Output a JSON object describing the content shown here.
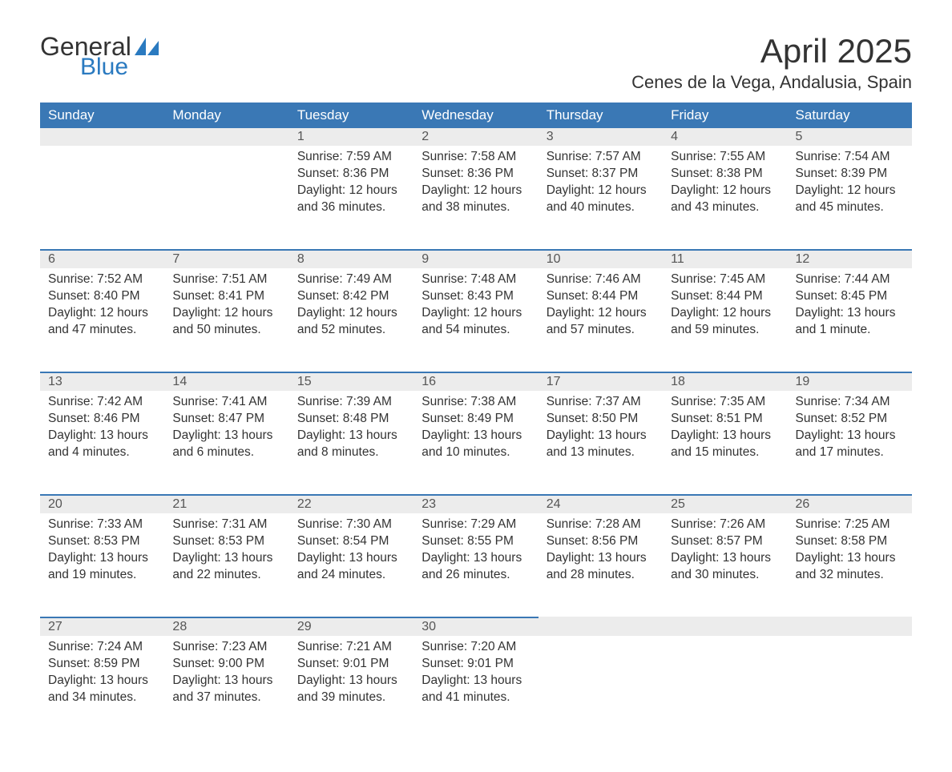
{
  "brand": {
    "line1": "General",
    "line2": "Blue",
    "color_primary": "#2a7ac0"
  },
  "title": "April 2025",
  "location": "Cenes de la Vega, Andalusia, Spain",
  "colors": {
    "header_bg": "#3a78b5",
    "header_text": "#ffffff",
    "daybar_bg": "#ececec",
    "rule": "#3a78b5",
    "text": "#333333"
  },
  "day_headers": [
    "Sunday",
    "Monday",
    "Tuesday",
    "Wednesday",
    "Thursday",
    "Friday",
    "Saturday"
  ],
  "weeks": [
    [
      null,
      null,
      {
        "n": "1",
        "sunrise": "Sunrise: 7:59 AM",
        "sunset": "Sunset: 8:36 PM",
        "d1": "Daylight: 12 hours",
        "d2": "and 36 minutes."
      },
      {
        "n": "2",
        "sunrise": "Sunrise: 7:58 AM",
        "sunset": "Sunset: 8:36 PM",
        "d1": "Daylight: 12 hours",
        "d2": "and 38 minutes."
      },
      {
        "n": "3",
        "sunrise": "Sunrise: 7:57 AM",
        "sunset": "Sunset: 8:37 PM",
        "d1": "Daylight: 12 hours",
        "d2": "and 40 minutes."
      },
      {
        "n": "4",
        "sunrise": "Sunrise: 7:55 AM",
        "sunset": "Sunset: 8:38 PM",
        "d1": "Daylight: 12 hours",
        "d2": "and 43 minutes."
      },
      {
        "n": "5",
        "sunrise": "Sunrise: 7:54 AM",
        "sunset": "Sunset: 8:39 PM",
        "d1": "Daylight: 12 hours",
        "d2": "and 45 minutes."
      }
    ],
    [
      {
        "n": "6",
        "sunrise": "Sunrise: 7:52 AM",
        "sunset": "Sunset: 8:40 PM",
        "d1": "Daylight: 12 hours",
        "d2": "and 47 minutes."
      },
      {
        "n": "7",
        "sunrise": "Sunrise: 7:51 AM",
        "sunset": "Sunset: 8:41 PM",
        "d1": "Daylight: 12 hours",
        "d2": "and 50 minutes."
      },
      {
        "n": "8",
        "sunrise": "Sunrise: 7:49 AM",
        "sunset": "Sunset: 8:42 PM",
        "d1": "Daylight: 12 hours",
        "d2": "and 52 minutes."
      },
      {
        "n": "9",
        "sunrise": "Sunrise: 7:48 AM",
        "sunset": "Sunset: 8:43 PM",
        "d1": "Daylight: 12 hours",
        "d2": "and 54 minutes."
      },
      {
        "n": "10",
        "sunrise": "Sunrise: 7:46 AM",
        "sunset": "Sunset: 8:44 PM",
        "d1": "Daylight: 12 hours",
        "d2": "and 57 minutes."
      },
      {
        "n": "11",
        "sunrise": "Sunrise: 7:45 AM",
        "sunset": "Sunset: 8:44 PM",
        "d1": "Daylight: 12 hours",
        "d2": "and 59 minutes."
      },
      {
        "n": "12",
        "sunrise": "Sunrise: 7:44 AM",
        "sunset": "Sunset: 8:45 PM",
        "d1": "Daylight: 13 hours",
        "d2": "and 1 minute."
      }
    ],
    [
      {
        "n": "13",
        "sunrise": "Sunrise: 7:42 AM",
        "sunset": "Sunset: 8:46 PM",
        "d1": "Daylight: 13 hours",
        "d2": "and 4 minutes."
      },
      {
        "n": "14",
        "sunrise": "Sunrise: 7:41 AM",
        "sunset": "Sunset: 8:47 PM",
        "d1": "Daylight: 13 hours",
        "d2": "and 6 minutes."
      },
      {
        "n": "15",
        "sunrise": "Sunrise: 7:39 AM",
        "sunset": "Sunset: 8:48 PM",
        "d1": "Daylight: 13 hours",
        "d2": "and 8 minutes."
      },
      {
        "n": "16",
        "sunrise": "Sunrise: 7:38 AM",
        "sunset": "Sunset: 8:49 PM",
        "d1": "Daylight: 13 hours",
        "d2": "and 10 minutes."
      },
      {
        "n": "17",
        "sunrise": "Sunrise: 7:37 AM",
        "sunset": "Sunset: 8:50 PM",
        "d1": "Daylight: 13 hours",
        "d2": "and 13 minutes."
      },
      {
        "n": "18",
        "sunrise": "Sunrise: 7:35 AM",
        "sunset": "Sunset: 8:51 PM",
        "d1": "Daylight: 13 hours",
        "d2": "and 15 minutes."
      },
      {
        "n": "19",
        "sunrise": "Sunrise: 7:34 AM",
        "sunset": "Sunset: 8:52 PM",
        "d1": "Daylight: 13 hours",
        "d2": "and 17 minutes."
      }
    ],
    [
      {
        "n": "20",
        "sunrise": "Sunrise: 7:33 AM",
        "sunset": "Sunset: 8:53 PM",
        "d1": "Daylight: 13 hours",
        "d2": "and 19 minutes."
      },
      {
        "n": "21",
        "sunrise": "Sunrise: 7:31 AM",
        "sunset": "Sunset: 8:53 PM",
        "d1": "Daylight: 13 hours",
        "d2": "and 22 minutes."
      },
      {
        "n": "22",
        "sunrise": "Sunrise: 7:30 AM",
        "sunset": "Sunset: 8:54 PM",
        "d1": "Daylight: 13 hours",
        "d2": "and 24 minutes."
      },
      {
        "n": "23",
        "sunrise": "Sunrise: 7:29 AM",
        "sunset": "Sunset: 8:55 PM",
        "d1": "Daylight: 13 hours",
        "d2": "and 26 minutes."
      },
      {
        "n": "24",
        "sunrise": "Sunrise: 7:28 AM",
        "sunset": "Sunset: 8:56 PM",
        "d1": "Daylight: 13 hours",
        "d2": "and 28 minutes."
      },
      {
        "n": "25",
        "sunrise": "Sunrise: 7:26 AM",
        "sunset": "Sunset: 8:57 PM",
        "d1": "Daylight: 13 hours",
        "d2": "and 30 minutes."
      },
      {
        "n": "26",
        "sunrise": "Sunrise: 7:25 AM",
        "sunset": "Sunset: 8:58 PM",
        "d1": "Daylight: 13 hours",
        "d2": "and 32 minutes."
      }
    ],
    [
      {
        "n": "27",
        "sunrise": "Sunrise: 7:24 AM",
        "sunset": "Sunset: 8:59 PM",
        "d1": "Daylight: 13 hours",
        "d2": "and 34 minutes."
      },
      {
        "n": "28",
        "sunrise": "Sunrise: 7:23 AM",
        "sunset": "Sunset: 9:00 PM",
        "d1": "Daylight: 13 hours",
        "d2": "and 37 minutes."
      },
      {
        "n": "29",
        "sunrise": "Sunrise: 7:21 AM",
        "sunset": "Sunset: 9:01 PM",
        "d1": "Daylight: 13 hours",
        "d2": "and 39 minutes."
      },
      {
        "n": "30",
        "sunrise": "Sunrise: 7:20 AM",
        "sunset": "Sunset: 9:01 PM",
        "d1": "Daylight: 13 hours",
        "d2": "and 41 minutes."
      },
      null,
      null,
      null
    ]
  ]
}
